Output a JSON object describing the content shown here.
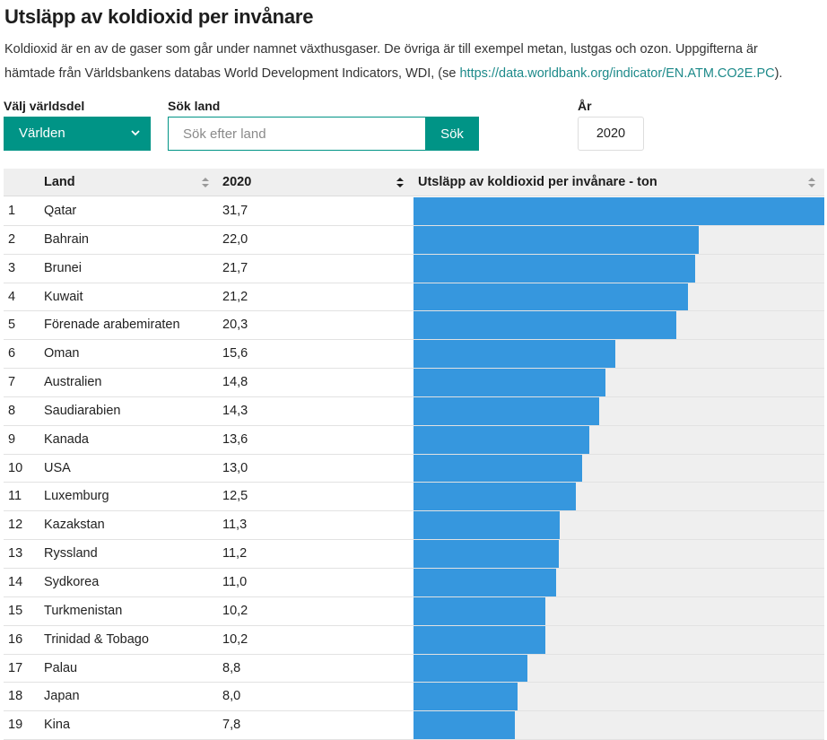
{
  "title": "Utsläpp av koldioxid per invånare",
  "intro": {
    "text": "Koldioxid är en av de gaser som går under namnet växthusgaser. De övriga är till exempel metan, lustgas och ozon. Uppgifterna är hämtade från Världsbankens databas World Development Indicators, WDI, (se ",
    "link": "https://data.worldbank.org/indicator/EN.ATM.CO2E.PC",
    "suffix": ")."
  },
  "filters": {
    "region_label": "Välj världsdel",
    "region_value": "Världen",
    "search_label": "Sök land",
    "search_placeholder": "Sök efter land",
    "search_value": "",
    "search_button": "Sök",
    "year_label": "År",
    "year_value": "2020"
  },
  "table": {
    "headers": {
      "country": "Land",
      "year": "2020",
      "bar": "Utsläpp av koldioxid per invånare - ton"
    },
    "max_value": 31.7,
    "rows": [
      {
        "rank": "1",
        "country": "Qatar",
        "value": "31,7",
        "num": 31.7
      },
      {
        "rank": "2",
        "country": "Bahrain",
        "value": "22,0",
        "num": 22.0
      },
      {
        "rank": "3",
        "country": "Brunei",
        "value": "21,7",
        "num": 21.7
      },
      {
        "rank": "4",
        "country": "Kuwait",
        "value": "21,2",
        "num": 21.2
      },
      {
        "rank": "5",
        "country": "Förenade arabemiraten",
        "value": "20,3",
        "num": 20.3
      },
      {
        "rank": "6",
        "country": "Oman",
        "value": "15,6",
        "num": 15.6
      },
      {
        "rank": "7",
        "country": "Australien",
        "value": "14,8",
        "num": 14.8
      },
      {
        "rank": "8",
        "country": "Saudiarabien",
        "value": "14,3",
        "num": 14.3
      },
      {
        "rank": "9",
        "country": "Kanada",
        "value": "13,6",
        "num": 13.6
      },
      {
        "rank": "10",
        "country": "USA",
        "value": "13,0",
        "num": 13.0
      },
      {
        "rank": "11",
        "country": "Luxemburg",
        "value": "12,5",
        "num": 12.5
      },
      {
        "rank": "12",
        "country": "Kazakstan",
        "value": "11,3",
        "num": 11.3
      },
      {
        "rank": "13",
        "country": "Ryssland",
        "value": "11,2",
        "num": 11.2
      },
      {
        "rank": "14",
        "country": "Sydkorea",
        "value": "11,0",
        "num": 11.0
      },
      {
        "rank": "15",
        "country": "Turkmenistan",
        "value": "10,2",
        "num": 10.2
      },
      {
        "rank": "16",
        "country": "Trinidad & Tobago",
        "value": "10,2",
        "num": 10.2
      },
      {
        "rank": "17",
        "country": "Palau",
        "value": "8,8",
        "num": 8.8
      },
      {
        "rank": "18",
        "country": "Japan",
        "value": "8,0",
        "num": 8.0
      },
      {
        "rank": "19",
        "country": "Kina",
        "value": "7,8",
        "num": 7.8
      }
    ]
  },
  "colors": {
    "accent": "#009486",
    "bar": "#3697de",
    "link": "#1d8a8a"
  }
}
